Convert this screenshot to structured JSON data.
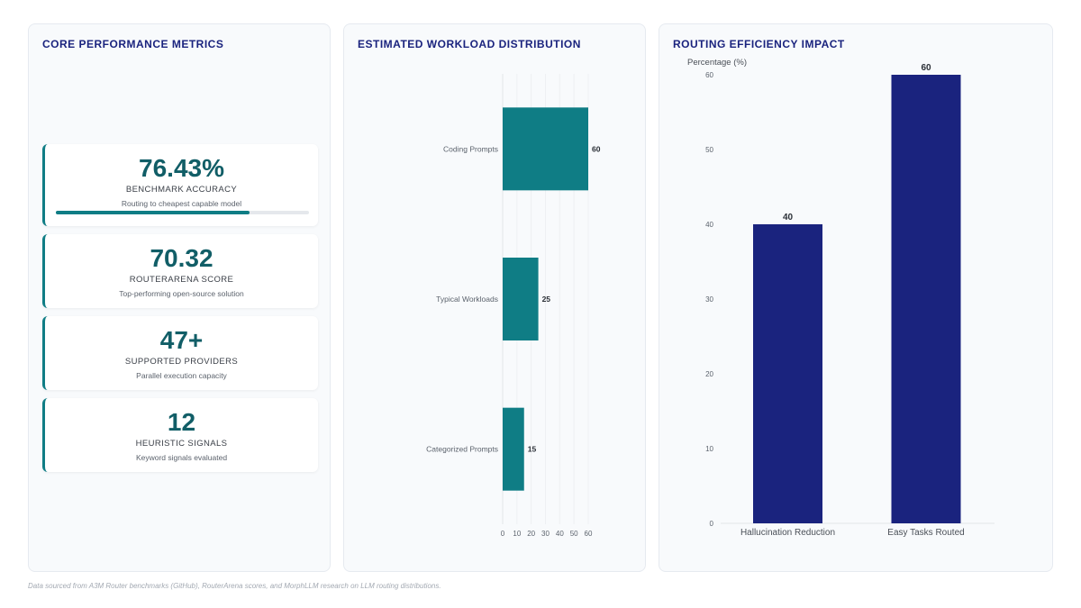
{
  "metrics_panel": {
    "title": "CORE PERFORMANCE METRICS",
    "cards": [
      {
        "value": "76.43%",
        "label": "BENCHMARK ACCURACY",
        "sub": "Routing to cheapest capable model",
        "progress": 0.7643
      },
      {
        "value": "70.32",
        "label": "ROUTERARENA SCORE",
        "sub": "Top-performing open-source solution"
      },
      {
        "value": "47+",
        "label": "SUPPORTED PROVIDERS",
        "sub": "Parallel execution capacity"
      },
      {
        "value": "12",
        "label": "HEURISTIC SIGNALS",
        "sub": "Keyword signals evaluated"
      }
    ]
  },
  "workload_panel": {
    "title": "ESTIMATED WORKLOAD DISTRIBUTION"
  },
  "efficiency_panel": {
    "title": "ROUTING EFFICIENCY IMPACT"
  },
  "footnote": "Data sourced from A3M Router benchmarks (GitHub), RouterArena scores, and MorphLLM research on LLM routing distributions.",
  "colors": {
    "teal": "#0f7d85",
    "navy": "#1a237e"
  },
  "chart_data": [
    {
      "type": "bar",
      "orientation": "horizontal",
      "title": "ESTIMATED WORKLOAD DISTRIBUTION",
      "categories": [
        "Coding Prompts",
        "Typical Workloads",
        "Categorized Prompts"
      ],
      "values": [
        60,
        25,
        15
      ],
      "xlim": [
        0,
        60
      ],
      "xticks": [
        0,
        10,
        20,
        30,
        40,
        50,
        60
      ],
      "data_labels": [
        "60",
        "25",
        "15"
      ],
      "color": "#0f7d85"
    },
    {
      "type": "bar",
      "title": "ROUTING EFFICIENCY IMPACT",
      "ylabel": "Percentage (%)",
      "categories": [
        "Hallucination Reduction",
        "Easy Tasks Routed"
      ],
      "values": [
        40,
        60
      ],
      "ylim": [
        0,
        60
      ],
      "yticks": [
        0,
        10,
        20,
        30,
        40,
        50,
        60
      ],
      "data_labels": [
        "40",
        "60"
      ],
      "color": "#1a237e"
    }
  ]
}
